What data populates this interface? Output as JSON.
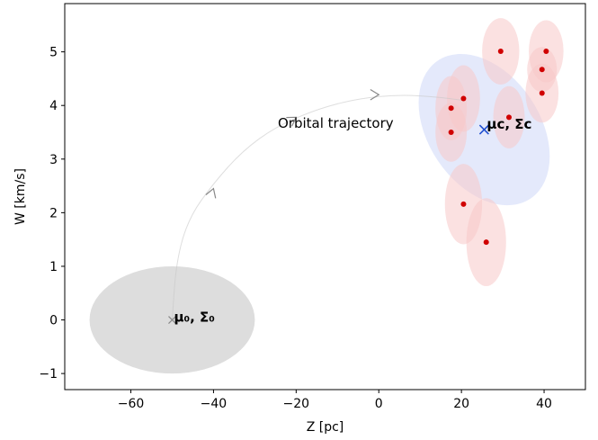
{
  "chart_data": {
    "type": "scatter",
    "title": "",
    "xlabel": "Z [pc]",
    "ylabel": "W [km/s]",
    "xlim": [
      -76,
      50
    ],
    "ylim": [
      -1.3,
      5.9
    ],
    "xticks": [
      -60,
      -40,
      -20,
      0,
      20,
      40
    ],
    "yticks": [
      -1,
      0,
      1,
      2,
      3,
      4,
      5
    ],
    "xtick_labels": [
      "−60",
      "−40",
      "−20",
      "0",
      "20",
      "40"
    ],
    "ytick_labels": [
      "−1",
      "0",
      "1",
      "2",
      "3",
      "4",
      "5"
    ],
    "grid": false,
    "prior_mean": {
      "x": -50,
      "y": 0
    },
    "prior_ellipse": {
      "rx": 20,
      "ry": 1.0,
      "color": "#dddddd"
    },
    "cluster_mean": {
      "x": 25.5,
      "y": 3.55
    },
    "cluster_ellipse": {
      "rx": 13.5,
      "ry": 1.55,
      "angle_deg": 34,
      "color": "#e3e8fb"
    },
    "stars": [
      {
        "x": 29.5,
        "y": 5.01,
        "rx": 4.5,
        "ry": 0.62
      },
      {
        "x": 40.5,
        "y": 5.01,
        "rx": 4.2,
        "ry": 0.58
      },
      {
        "x": 39.5,
        "y": 4.67,
        "rx": 3.6,
        "ry": 0.42
      },
      {
        "x": 39.5,
        "y": 4.23,
        "rx": 4.0,
        "ry": 0.55
      },
      {
        "x": 20.5,
        "y": 4.13,
        "rx": 4.0,
        "ry": 0.62
      },
      {
        "x": 17.5,
        "y": 3.95,
        "rx": 3.8,
        "ry": 0.6
      },
      {
        "x": 31.5,
        "y": 3.78,
        "rx": 3.8,
        "ry": 0.58
      },
      {
        "x": 17.5,
        "y": 3.5,
        "rx": 3.8,
        "ry": 0.55
      },
      {
        "x": 20.5,
        "y": 2.16,
        "rx": 4.5,
        "ry": 0.75
      },
      {
        "x": 26.0,
        "y": 1.45,
        "rx": 4.8,
        "ry": 0.82
      }
    ],
    "trajectory": [
      [
        -50,
        0
      ],
      [
        -49,
        1.1
      ],
      [
        -46,
        1.9
      ],
      [
        -40,
        2.55
      ],
      [
        -33,
        3.15
      ],
      [
        -25,
        3.6
      ],
      [
        -15,
        3.93
      ],
      [
        -5,
        4.13
      ],
      [
        5,
        4.2
      ],
      [
        14,
        4.16
      ],
      [
        20,
        4.1
      ]
    ],
    "arrows": [
      {
        "x": -40,
        "y": 2.45,
        "dx": 1,
        "dy": 0.22
      },
      {
        "x": -20,
        "y": 3.78,
        "dx": 1,
        "dy": 0.05
      },
      {
        "x": 0,
        "y": 4.2,
        "dx": 1,
        "dy": 0
      }
    ],
    "annotations": {
      "trajectory_label": "Orbital trajectory",
      "prior_label": "μ₀, Σ₀",
      "cluster_label": "μc, Σc"
    },
    "colors": {
      "star_point": "#d00000",
      "star_ellipse": "#f8c9c9",
      "cluster_marker": "#1f4fd1",
      "cluster_text": "#1f4fd1",
      "trajectory": "#c8c8c8",
      "arrow": "#888888"
    }
  }
}
